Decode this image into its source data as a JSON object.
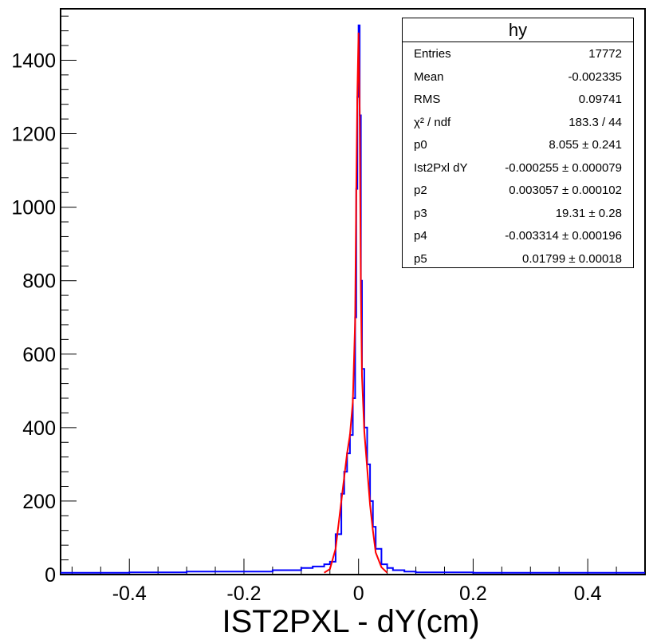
{
  "chart_data": {
    "type": "line",
    "title": "",
    "xlabel": "IST2PXL - dY(cm)",
    "ylabel": "",
    "xlim": [
      -0.52,
      0.5
    ],
    "ylim": [
      0,
      1540
    ],
    "x_ticks": [
      "-0.4",
      "-0.2",
      "0",
      "0.2",
      "0.4"
    ],
    "x_tick_values": [
      -0.4,
      -0.2,
      0,
      0.2,
      0.4
    ],
    "y_ticks": [
      "0",
      "200",
      "400",
      "600",
      "800",
      "1000",
      "1200",
      "1400"
    ],
    "y_tick_values": [
      0,
      200,
      400,
      600,
      800,
      1000,
      1200,
      1400
    ],
    "histogram": {
      "color": "#0000ff",
      "x": [
        -0.5,
        -0.4,
        -0.3,
        -0.2,
        -0.15,
        -0.1,
        -0.08,
        -0.06,
        -0.05,
        -0.04,
        -0.03,
        -0.025,
        -0.02,
        -0.015,
        -0.01,
        -0.006,
        -0.004,
        -0.002,
        0.0,
        0.002,
        0.004,
        0.006,
        0.01,
        0.015,
        0.02,
        0.025,
        0.03,
        0.04,
        0.05,
        0.06,
        0.08,
        0.1,
        0.2,
        0.3,
        0.4,
        0.5
      ],
      "y": [
        5,
        6,
        8,
        8,
        12,
        18,
        22,
        28,
        35,
        110,
        220,
        280,
        330,
        380,
        480,
        700,
        1050,
        1300,
        1495,
        1250,
        800,
        560,
        400,
        300,
        200,
        130,
        70,
        28,
        18,
        12,
        8,
        6,
        5,
        5,
        5,
        5
      ]
    },
    "fit": {
      "color": "#ff0000",
      "x": [
        -0.06,
        -0.05,
        -0.04,
        -0.03,
        -0.025,
        -0.02,
        -0.015,
        -0.01,
        -0.006,
        -0.004,
        -0.002,
        0.0,
        0.002,
        0.004,
        0.006,
        0.01,
        0.015,
        0.02,
        0.025,
        0.03,
        0.04,
        0.05
      ],
      "y": [
        5,
        15,
        70,
        200,
        265,
        330,
        380,
        470,
        690,
        1040,
        1310,
        1475,
        1260,
        780,
        540,
        390,
        290,
        190,
        120,
        60,
        20,
        5
      ]
    }
  },
  "stats": {
    "title": "hy",
    "rows": [
      {
        "key": "Entries",
        "value": "17772"
      },
      {
        "key": "Mean",
        "value": "-0.002335"
      },
      {
        "key": "RMS",
        "value": "0.09741"
      },
      {
        "key": "χ² / ndf",
        "value": "183.3 / 44"
      },
      {
        "key": "p0",
        "value": "8.055 ± 0.241"
      },
      {
        "key": "Ist2Pxl dY",
        "value": "-0.000255 ± 0.000079"
      },
      {
        "key": "p2",
        "value": "0.003057 ± 0.000102"
      },
      {
        "key": "p3",
        "value": "19.31 ± 0.28"
      },
      {
        "key": "p4",
        "value": "-0.003314 ± 0.000196"
      },
      {
        "key": "p5",
        "value": "0.01799 ± 0.00018"
      }
    ]
  }
}
